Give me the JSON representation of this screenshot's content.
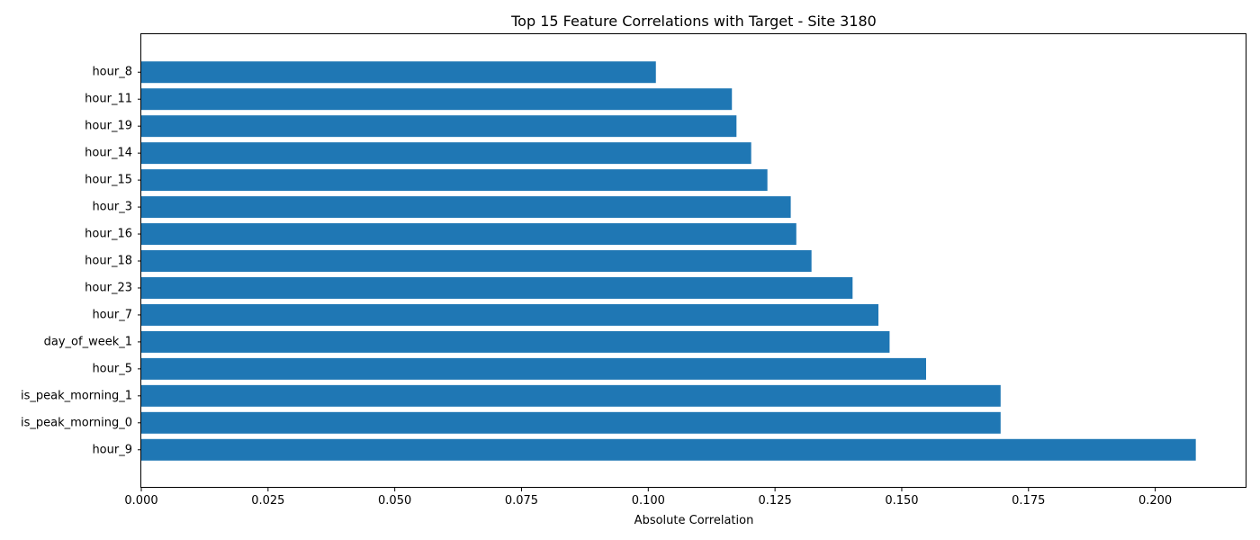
{
  "chart_data": {
    "type": "bar",
    "orientation": "horizontal",
    "title": "Top 15 Feature Correlations with Target - Site 3180",
    "xlabel": "Absolute Correlation",
    "ylabel": "",
    "xlim": [
      0,
      0.218
    ],
    "x_ticks": [
      0.0,
      0.025,
      0.05,
      0.075,
      0.1,
      0.125,
      0.15,
      0.175,
      0.2
    ],
    "x_tick_labels": [
      "0.000",
      "0.025",
      "0.050",
      "0.075",
      "0.100",
      "0.125",
      "0.150",
      "0.175",
      "0.200"
    ],
    "bar_color": "#1f77b4",
    "grid": false,
    "categories": [
      "hour_9",
      "is_peak_morning_0",
      "is_peak_morning_1",
      "hour_5",
      "day_of_week_1",
      "hour_7",
      "hour_23",
      "hour_18",
      "hour_16",
      "hour_3",
      "hour_15",
      "hour_14",
      "hour_19",
      "hour_11",
      "hour_8"
    ],
    "values": [
      0.208,
      0.1695,
      0.1695,
      0.1548,
      0.1476,
      0.1454,
      0.1403,
      0.1322,
      0.1292,
      0.1281,
      0.1235,
      0.1203,
      0.1174,
      0.1165,
      0.1015
    ]
  }
}
